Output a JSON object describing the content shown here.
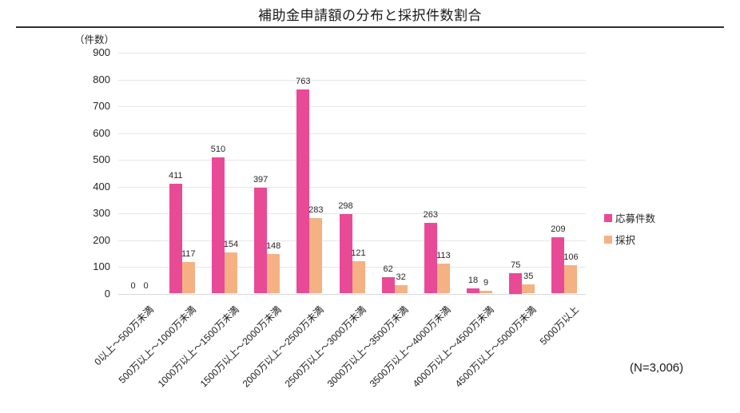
{
  "chart_data": {
    "type": "bar",
    "title": "補助金申請額の分布と採択件数割合",
    "ylabel": "（件数）",
    "xlabel": "",
    "ylim": [
      0,
      900
    ],
    "ytick_step": 100,
    "grid": true,
    "legend_position": "right",
    "annotation": "(N=3,006)",
    "categories": [
      "0以上～500万未満",
      "500万以上～1000万未満",
      "1000万以上～1500万未満",
      "1500万以上～2000万未満",
      "2000万以上～2500万未満",
      "2500万以上～3000万未満",
      "3000万以上～3500万未満",
      "3500万以上～4000万未満",
      "4000万以上～4500万未満",
      "4500万以上～5000万未満",
      "5000万以上"
    ],
    "series": [
      {
        "name": "応募件数",
        "color": "#e94a96",
        "values": [
          0,
          411,
          510,
          397,
          763,
          298,
          62,
          263,
          18,
          75,
          209
        ]
      },
      {
        "name": "採択",
        "color": "#f5b183",
        "values": [
          0,
          117,
          154,
          148,
          283,
          121,
          32,
          113,
          9,
          35,
          106
        ]
      }
    ]
  }
}
